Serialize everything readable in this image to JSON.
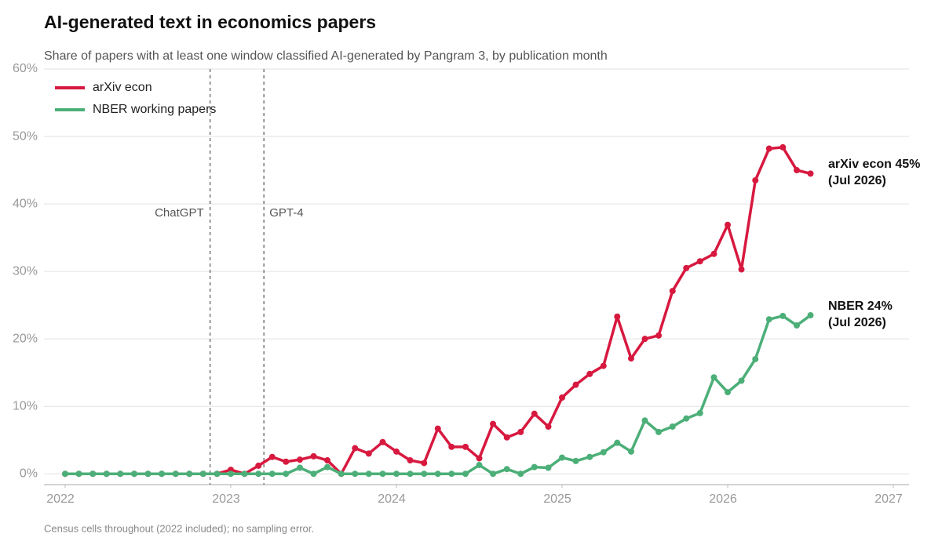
{
  "chart_data": {
    "type": "line",
    "title": "AI-generated text in economics papers",
    "subtitle": "Share of papers with at least one window classified AI-generated by Pangram 3, by publication month",
    "note": "Census cells throughout (2022 included); no sampling error.",
    "x": [
      2022.0,
      2022.083,
      2022.167,
      2022.25,
      2022.333,
      2022.417,
      2022.5,
      2022.583,
      2022.667,
      2022.75,
      2022.833,
      2022.917,
      2023.0,
      2023.083,
      2023.167,
      2023.25,
      2023.333,
      2023.417,
      2023.5,
      2023.583,
      2023.667,
      2023.75,
      2023.833,
      2023.917,
      2024.0,
      2024.083,
      2024.167,
      2024.25,
      2024.333,
      2024.417,
      2024.5,
      2024.583,
      2024.667,
      2024.75,
      2024.833,
      2024.917,
      2025.0,
      2025.083,
      2025.167,
      2025.25,
      2025.333,
      2025.417,
      2025.5,
      2025.583,
      2025.667,
      2025.75,
      2025.833,
      2025.917,
      2026.0,
      2026.083,
      2026.167,
      2026.25,
      2026.333,
      2026.417,
      2026.5
    ],
    "series": [
      {
        "name": "arXiv econ",
        "color": "#d7193f",
        "values": [
          0,
          0,
          0,
          0,
          0,
          0,
          0,
          0,
          0,
          0,
          0,
          0,
          0.6,
          0,
          1.2,
          2.5,
          1.8,
          2.1,
          2.6,
          2.0,
          0,
          3.8,
          3.0,
          4.7,
          3.3,
          2.0,
          1.6,
          6.7,
          4.0,
          4.0,
          2.3,
          7.4,
          5.4,
          6.2,
          8.9,
          7.0,
          11.3,
          13.2,
          14.8,
          16.0,
          23.3,
          17.1,
          20.0,
          20.5,
          27.1,
          30.5,
          31.5,
          32.6,
          36.9,
          30.3,
          43.5,
          48.2,
          48.4,
          45.0,
          44.5
        ]
      },
      {
        "name": "NBER working papers",
        "color": "#4caf78",
        "values": [
          0,
          0,
          0,
          0,
          0,
          0,
          0,
          0,
          0,
          0,
          0,
          0,
          0,
          0,
          0,
          0,
          0,
          0.9,
          0,
          1.0,
          0,
          0,
          0,
          0,
          0,
          0,
          0,
          0,
          0,
          0,
          1.3,
          0,
          0.7,
          0,
          1.0,
          0.9,
          2.4,
          1.9,
          2.5,
          3.2,
          4.6,
          3.3,
          7.9,
          6.2,
          7.0,
          8.2,
          9.0,
          14.3,
          12.1,
          13.8,
          17.0,
          22.9,
          23.4,
          22.0,
          23.5
        ]
      }
    ],
    "end_labels": [
      [
        "arXiv econ 45%",
        "(Jul 2026)"
      ],
      [
        "NBER 24%",
        "(Jul 2026)"
      ]
    ],
    "events": [
      {
        "x": 2022.875,
        "label": "ChatGPT"
      },
      {
        "x": 2023.2,
        "label": "GPT-4"
      }
    ],
    "xlim": [
      2022,
      2027
    ],
    "xticks": [
      2022,
      2023,
      2024,
      2025,
      2026,
      2027
    ],
    "ylim": [
      -1.6,
      60
    ],
    "yticks": [
      {
        "value": 0,
        "label": "0%"
      },
      {
        "value": 10,
        "label": "10%"
      },
      {
        "value": 20,
        "label": "20%"
      },
      {
        "value": 30,
        "label": "30%"
      },
      {
        "value": 40,
        "label": "40%"
      },
      {
        "value": 50,
        "label": "50%"
      },
      {
        "value": 60,
        "label": "60%"
      }
    ],
    "grid": true,
    "legend": "upper left"
  }
}
